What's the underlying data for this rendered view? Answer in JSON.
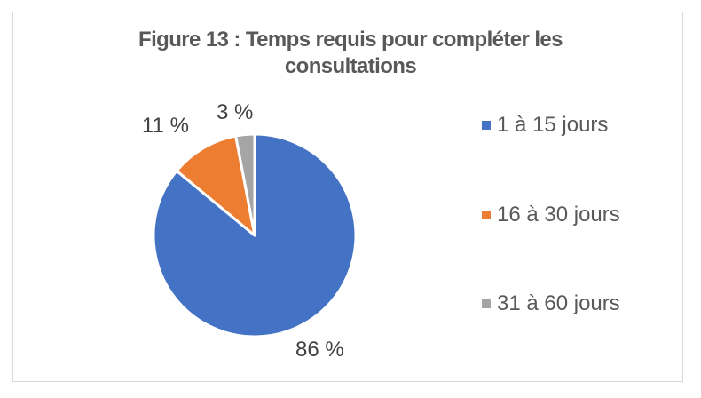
{
  "chart_data": {
    "type": "pie",
    "title": "Figure 13 : Temps requis pour compléter les consultations",
    "title_lines": [
      "Figure 13 : Temps requis pour compléter les",
      "consultations"
    ],
    "categories": [
      "1 à 15 jours",
      "16 à 30 jours",
      "31 à 60 jours"
    ],
    "values": [
      86,
      11,
      3
    ],
    "unit": "%",
    "data_labels": [
      "86 %",
      "11 %",
      "3 %"
    ],
    "colors": [
      "#4472c4",
      "#ed7d31",
      "#a5a5a5"
    ],
    "legend_position": "right",
    "start_angle_deg": 0,
    "direction": "clockwise"
  },
  "legend": {
    "items": [
      {
        "label": "1 à 15 jours",
        "color": "#4472c4"
      },
      {
        "label": "16 à 30 jours",
        "color": "#ed7d31"
      },
      {
        "label": "31 à 60 jours",
        "color": "#a5a5a5"
      }
    ]
  }
}
